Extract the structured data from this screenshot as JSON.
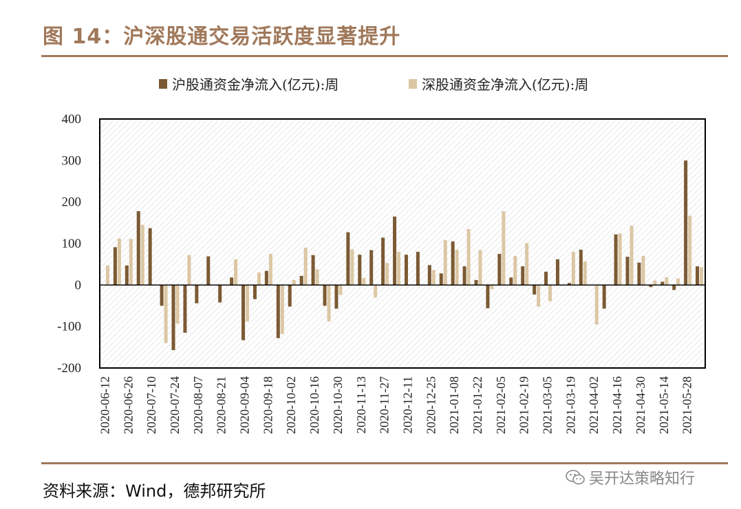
{
  "title": "图 14：沪深股通交易活跃度显著提升",
  "source": "资料来源：Wind，德邦研究所",
  "watermark": "吴开达策略知行",
  "colors": {
    "accent": "#a0785a",
    "series_sh": "#7b5a33",
    "series_sz": "#dcc7a4"
  },
  "chart_data": {
    "type": "bar",
    "title": "",
    "xlabel": "",
    "ylabel": "",
    "ylim": [
      -200,
      400
    ],
    "yticks": [
      400,
      300,
      200,
      100,
      0,
      -100,
      -200
    ],
    "grid": false,
    "legend": "top",
    "tick_labels": [
      "2020-06-12",
      "2020-06-26",
      "2020-07-10",
      "2020-07-24",
      "2020-08-07",
      "2020-08-21",
      "2020-09-04",
      "2020-09-18",
      "2020-10-02",
      "2020-10-16",
      "2020-10-30",
      "2020-11-13",
      "2020-11-27",
      "2020-12-11",
      "2020-12-25",
      "2021-01-08",
      "2021-01-22",
      "2021-02-05",
      "2021-02-19",
      "2021-03-05",
      "2021-03-19",
      "2021-04-02",
      "2021-04-16",
      "2021-04-30",
      "2021-05-14",
      "2021-05-28"
    ],
    "series": [
      {
        "name": "沪股通资金净流入(亿元):周",
        "values": [
          0,
          91,
          47,
          178,
          137,
          -50,
          -157,
          -115,
          -44,
          69,
          -42,
          18,
          -133,
          -34,
          34,
          -128,
          -52,
          22,
          72,
          -50,
          -57,
          127,
          73,
          84,
          114,
          165,
          73,
          80,
          48,
          28,
          105,
          45,
          12,
          -56,
          75,
          18,
          45,
          -23,
          32,
          62,
          5,
          85,
          0,
          -57,
          122,
          68,
          54,
          -5,
          8,
          -12,
          300,
          45
        ]
      },
      {
        "name": "深股通资金净流入(亿元):周",
        "values": [
          47,
          112,
          111,
          145,
          0,
          -140,
          -93,
          72,
          0,
          0,
          0,
          62,
          -88,
          30,
          75,
          -118,
          12,
          90,
          38,
          -88,
          -24,
          86,
          17,
          -30,
          53,
          80,
          0,
          0,
          36,
          108,
          85,
          135,
          84,
          -10,
          178,
          70,
          101,
          -52,
          -39,
          0,
          80,
          57,
          -95,
          0,
          124,
          143,
          70,
          11,
          19,
          16,
          167,
          43
        ]
      }
    ]
  }
}
